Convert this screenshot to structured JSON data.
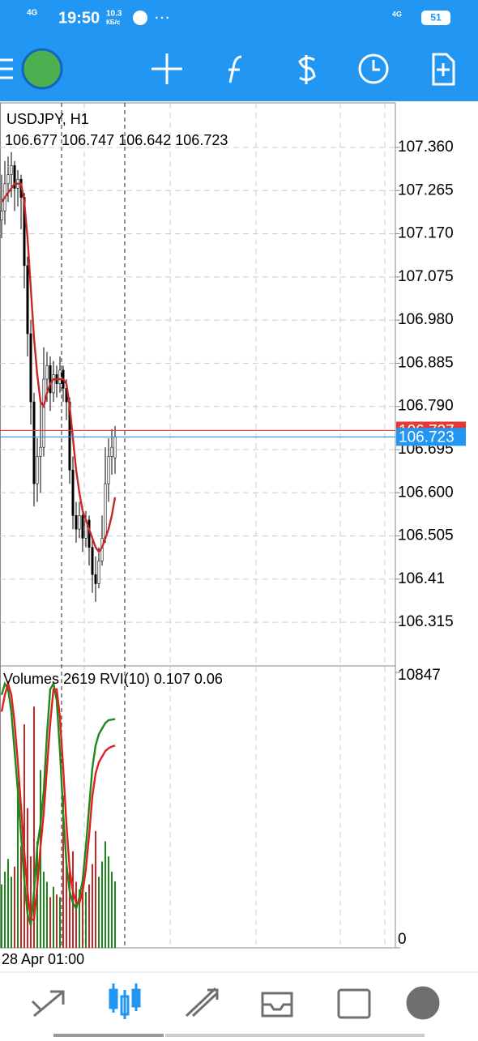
{
  "status_bar": {
    "network": "4G",
    "time": "19:50",
    "net_speed": "10.3",
    "net_unit": "КБ/с",
    "network2": "4G",
    "battery": "51"
  },
  "chart_data": [
    {
      "type": "candlestick",
      "title": "USDJPY, H1",
      "candles": [
        [
          107.2,
          107.3,
          107.16,
          107.22
        ],
        [
          107.22,
          107.33,
          107.19,
          107.28
        ],
        [
          107.28,
          107.34,
          107.24,
          107.3
        ],
        [
          107.3,
          107.35,
          107.25,
          107.32
        ],
        [
          107.32,
          107.33,
          107.22,
          107.27
        ],
        [
          107.27,
          107.31,
          107.23,
          107.29
        ],
        [
          107.29,
          107.3,
          107.18,
          107.25
        ],
        [
          107.25,
          107.26,
          107.05,
          107.1
        ],
        [
          107.1,
          107.12,
          106.9,
          106.95
        ],
        [
          106.95,
          106.98,
          106.75,
          106.8
        ],
        [
          106.8,
          106.82,
          106.57,
          106.62
        ],
        [
          106.62,
          106.72,
          106.58,
          106.68
        ],
        [
          106.68,
          106.8,
          106.6,
          106.7
        ],
        [
          106.7,
          106.92,
          106.68,
          106.85
        ],
        [
          106.85,
          106.91,
          106.8,
          106.88
        ],
        [
          106.88,
          106.9,
          106.78,
          106.82
        ],
        [
          106.82,
          106.89,
          106.8,
          106.86
        ],
        [
          106.86,
          106.88,
          106.81,
          106.84
        ],
        [
          106.84,
          106.9,
          106.82,
          106.87
        ],
        [
          106.87,
          106.88,
          106.8,
          106.83
        ],
        [
          106.83,
          106.85,
          106.76,
          106.8
        ],
        [
          106.8,
          106.81,
          106.62,
          106.65
        ],
        [
          106.65,
          106.68,
          106.52,
          106.55
        ],
        [
          106.55,
          106.58,
          106.49,
          106.52
        ],
        [
          106.52,
          106.58,
          106.5,
          106.55
        ],
        [
          106.55,
          106.57,
          106.47,
          106.5
        ],
        [
          106.5,
          106.56,
          106.48,
          106.54
        ],
        [
          106.54,
          106.55,
          106.44,
          106.48
        ],
        [
          106.48,
          106.5,
          106.38,
          106.42
        ],
        [
          106.42,
          106.46,
          106.36,
          106.4
        ],
        [
          106.4,
          106.48,
          106.39,
          106.45
        ],
        [
          106.45,
          106.55,
          106.44,
          106.5
        ],
        [
          106.5,
          106.7,
          106.49,
          106.62
        ],
        [
          106.62,
          106.72,
          106.58,
          106.68
        ],
        [
          106.68,
          106.74,
          106.64,
          106.7
        ],
        [
          106.677,
          106.747,
          106.642,
          106.723
        ]
      ],
      "candle_color": "#000000",
      "series": [
        {
          "color": "#c62828",
          "values": [
            107.24,
            107.25,
            107.26,
            107.27,
            107.28,
            107.28,
            107.28,
            107.24,
            107.16,
            107.05,
            106.94,
            106.86,
            106.8,
            106.79,
            106.82,
            106.84,
            106.85,
            106.85,
            106.85,
            106.85,
            106.84,
            106.79,
            106.72,
            106.65,
            106.6,
            106.56,
            106.54,
            106.52,
            106.5,
            106.48,
            106.47,
            106.48,
            106.5,
            106.52,
            106.55,
            106.59
          ]
        }
      ],
      "price_lines": [
        {
          "value": 106.737,
          "color": "#e53935"
        },
        {
          "value": 106.723,
          "color": "#2196f3"
        }
      ],
      "ylim": [
        106.219,
        107.458
      ],
      "yticks": [
        {
          "value": 107.36,
          "label": "107.360"
        },
        107.265,
        {
          "value": 107.17,
          "label": "107.170"
        },
        107.075,
        {
          "value": 106.98,
          "label": "106.980"
        },
        106.885,
        {
          "value": 106.79,
          "label": "106.790"
        },
        106.695,
        {
          "value": 106.6,
          "label": "106.600"
        },
        106.505,
        106.41,
        106.315
      ],
      "grid": true
    },
    {
      "type": "bar",
      "title": "Volumes",
      "values": [
        2500,
        3000,
        3500,
        2800,
        3200,
        6500,
        4000,
        8800,
        5500,
        3600,
        9500,
        4200,
        7000,
        3000,
        2600,
        2000,
        2400,
        2100,
        2000,
        6000,
        3500,
        3000,
        3800,
        2600,
        2300,
        2800,
        2200,
        2500,
        3300,
        4600,
        2800,
        3400,
        4200,
        3600,
        3000,
        2619
      ],
      "up_color": "#1a8a1a",
      "down_color": "#c62828",
      "ylim": [
        0,
        10847
      ],
      "yticks": [
        10847,
        0
      ],
      "y2lim": [
        -0.3,
        0.19
      ],
      "series": [
        {
          "name": "RVI(10)",
          "color": "#1a8a1a",
          "axis": "y2",
          "values": [
            0.15,
            0.17,
            0.16,
            0.12,
            0.05,
            -0.02,
            -0.1,
            -0.18,
            -0.24,
            -0.26,
            -0.2,
            -0.12,
            -0.08,
            -0.02,
            0.08,
            0.16,
            0.17,
            0.14,
            0.05,
            -0.06,
            -0.15,
            -0.2,
            -0.22,
            -0.23,
            -0.21,
            -0.18,
            -0.12,
            -0.05,
            0.02,
            0.06,
            0.08,
            0.09,
            0.1,
            0.105,
            0.106,
            0.107
          ]
        },
        {
          "color": "#e02020",
          "axis": "y2",
          "values": [
            0.12,
            0.15,
            0.17,
            0.15,
            0.1,
            0.03,
            -0.05,
            -0.13,
            -0.2,
            -0.25,
            -0.25,
            -0.19,
            -0.12,
            -0.06,
            0.02,
            0.1,
            0.16,
            0.16,
            0.11,
            0.02,
            -0.08,
            -0.16,
            -0.2,
            -0.22,
            -0.22,
            -0.2,
            -0.16,
            -0.1,
            -0.03,
            0.01,
            0.03,
            0.04,
            0.05,
            0.055,
            0.058,
            0.06
          ]
        }
      ],
      "time_label": "28 Apr 01:00"
    }
  ]
}
